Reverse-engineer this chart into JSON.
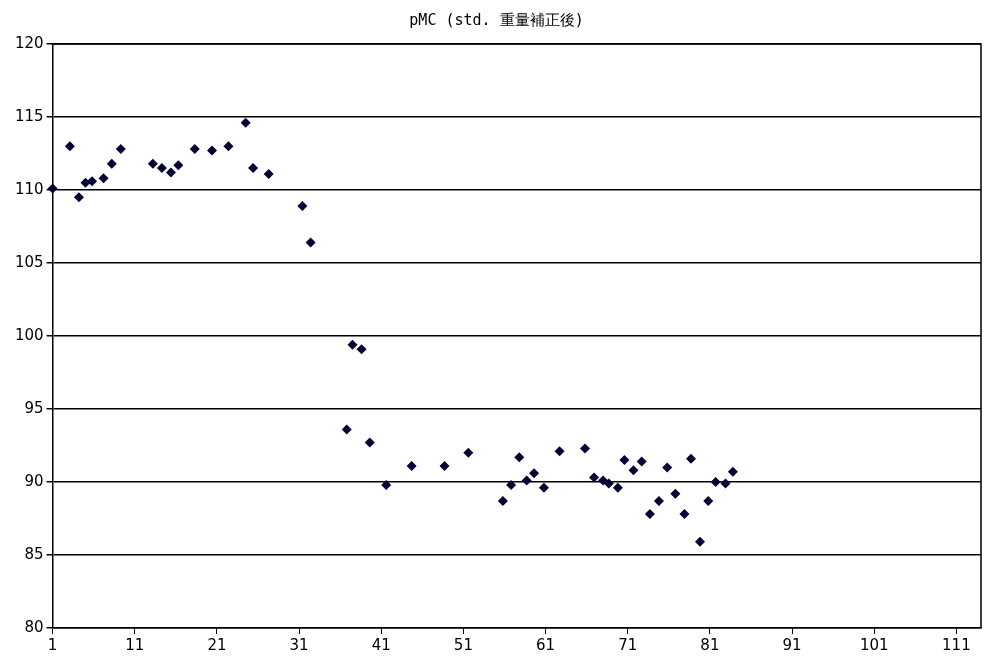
{
  "chart_data": {
    "type": "scatter",
    "title": "pMC (std. 重量補正後)",
    "marker": "diamond",
    "grid": "y",
    "legend": false,
    "xlim": [
      1,
      114
    ],
    "xticks": [
      1,
      11,
      21,
      31,
      41,
      51,
      61,
      71,
      81,
      91,
      101,
      111
    ],
    "ylim": [
      80,
      120
    ],
    "yticks": [
      80,
      85,
      90,
      95,
      100,
      105,
      110,
      115,
      120
    ],
    "series": [
      {
        "color": "#000033",
        "x": [
          1,
          3.1,
          4.2,
          5,
          5.8,
          7.2,
          8.2,
          9.3,
          13.2,
          14.3,
          15.4,
          16.3,
          18.3,
          20.4,
          22.4,
          24.5,
          25.4,
          27.3,
          31.4,
          32.4,
          36.8,
          37.5,
          38.6,
          39.6,
          41.6,
          44.7,
          48.7,
          51.6,
          55.8,
          56.8,
          57.8,
          58.7,
          59.6,
          60.8,
          62.7,
          65.8,
          66.9,
          68.0,
          68.7,
          69.8,
          70.6,
          71.7,
          72.7,
          73.7,
          74.8,
          75.8,
          76.8,
          77.9,
          78.7,
          79.8,
          80.8,
          81.7,
          82.9,
          83.8
        ],
        "values": [
          110.1,
          113.0,
          109.5,
          110.5,
          110.6,
          110.8,
          111.8,
          112.8,
          111.8,
          111.5,
          111.2,
          111.7,
          112.8,
          112.7,
          113.0,
          114.6,
          111.5,
          111.1,
          108.9,
          106.4,
          93.6,
          99.4,
          99.1,
          92.7,
          89.8,
          91.1,
          91.1,
          92.0,
          88.7,
          89.8,
          91.7,
          90.1,
          90.6,
          89.6,
          92.1,
          92.3,
          90.3,
          90.1,
          89.9,
          89.6,
          91.5,
          90.8,
          91.4,
          87.8,
          88.7,
          91.0,
          89.2,
          87.8,
          91.6,
          85.9,
          88.7,
          90.0,
          89.9,
          90.7
        ]
      }
    ]
  }
}
